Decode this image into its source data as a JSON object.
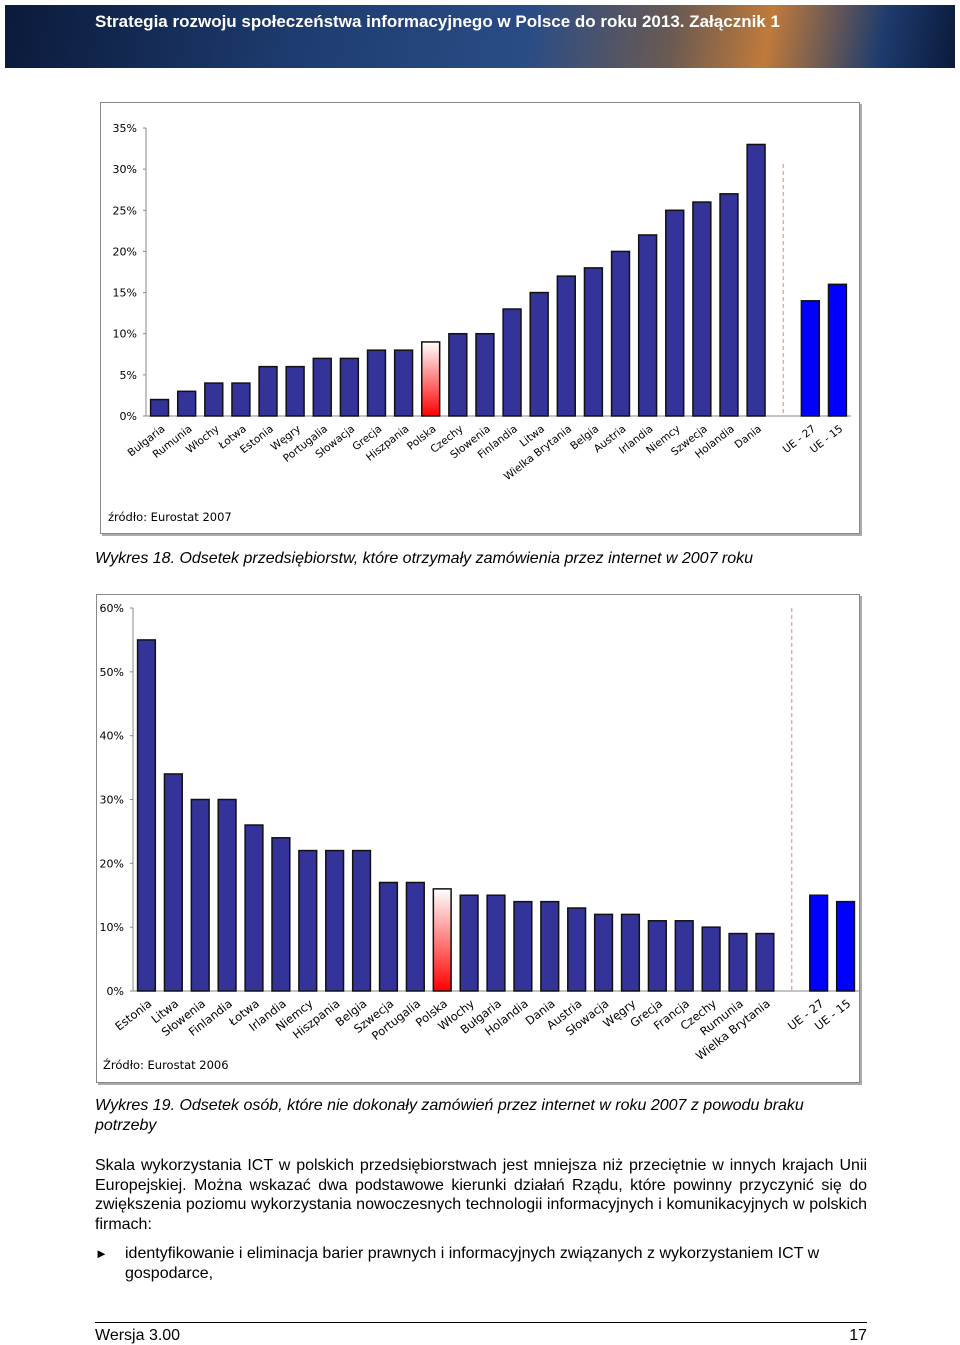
{
  "header": {
    "title": "Strategia rozwoju społeczeństwa informacyjnego w Polsce do roku 2013. Załącznik 1"
  },
  "chart_data": [
    {
      "type": "bar",
      "categories": [
        "Bułgaria",
        "Rumunia",
        "Włochy",
        "Łotwa",
        "Estonia",
        "Węgry",
        "Portugalia",
        "Słowacja",
        "Grecja",
        "Hiszpania",
        "Polska",
        "Czechy",
        "Słowenia",
        "Finlandia",
        "Litwa",
        "Wielka Brytania",
        "Belgia",
        "Austria",
        "Irlandia",
        "Niemcy",
        "Szwecja",
        "Holandia",
        "Dania",
        null,
        "UE - 27",
        "UE - 15"
      ],
      "values": [
        2,
        3,
        4,
        4,
        6,
        6,
        7,
        7,
        8,
        8,
        9,
        10,
        10,
        13,
        15,
        17,
        18,
        20,
        22,
        25,
        26,
        27,
        33,
        null,
        14,
        16
      ],
      "colors": [
        "#333399",
        "#333399",
        "#333399",
        "#333399",
        "#333399",
        "#333399",
        "#333399",
        "#333399",
        "#333399",
        "#333399",
        [
          "#ffffff",
          "#ff0000"
        ],
        "#333399",
        "#333399",
        "#333399",
        "#333399",
        "#333399",
        "#333399",
        "#333399",
        "#333399",
        "#333399",
        "#333399",
        "#333399",
        "#333399",
        null,
        "#0000ff",
        "#0000ff"
      ],
      "ylim": [
        0,
        35
      ],
      "yticks": [
        {
          "value": 0,
          "label": "0%"
        },
        {
          "value": 5,
          "label": "5%"
        },
        {
          "value": 10,
          "label": "10%"
        },
        {
          "value": 15,
          "label": "15%"
        },
        {
          "value": 20,
          "label": "20%"
        },
        {
          "value": 25,
          "label": "25%"
        },
        {
          "value": 30,
          "label": "30%"
        },
        {
          "value": 35,
          "label": "35%"
        }
      ],
      "source": "źródło: Eurostat 2007",
      "caption": "Wykres 18. Odsetek przedsiębiorstw, które otrzymały zamówienia przez internet w 2007 roku"
    },
    {
      "type": "bar",
      "categories": [
        "Estonia",
        "Litwa",
        "Słowenia",
        "Finlandia",
        "Łotwa",
        "Irlandia",
        "Niemcy",
        "Hiszpania",
        "Belgia",
        "Szwecja",
        "Portugalia",
        "Polska",
        "Włochy",
        "Bułgaria",
        "Holandia",
        "Dania",
        "Austria",
        "Słowacja",
        "Węgry",
        "Grecja",
        "Francja",
        "Czechy",
        "Rumunia",
        "Wielka Brytania",
        null,
        "UE - 27",
        "UE - 15"
      ],
      "values": [
        55,
        34,
        30,
        30,
        26,
        24,
        22,
        22,
        22,
        17,
        17,
        16,
        15,
        15,
        14,
        14,
        13,
        12,
        12,
        11,
        11,
        10,
        9,
        9,
        null,
        15,
        14
      ],
      "colors": [
        "#333399",
        "#333399",
        "#333399",
        "#333399",
        "#333399",
        "#333399",
        "#333399",
        "#333399",
        "#333399",
        "#333399",
        "#333399",
        [
          "#ffffff",
          "#ff0000"
        ],
        "#333399",
        "#333399",
        "#333399",
        "#333399",
        "#333399",
        "#333399",
        "#333399",
        "#333399",
        "#333399",
        "#333399",
        "#333399",
        "#333399",
        null,
        "#0000ff",
        "#0000ff"
      ],
      "ylim": [
        0,
        60
      ],
      "yticks": [
        {
          "value": 0,
          "label": "0%"
        },
        {
          "value": 10,
          "label": "10%"
        },
        {
          "value": 20,
          "label": "20%"
        },
        {
          "value": 30,
          "label": "30%"
        },
        {
          "value": 40,
          "label": "40%"
        },
        {
          "value": 50,
          "label": "50%"
        },
        {
          "value": 60,
          "label": "60%"
        }
      ],
      "source": "Źródło: Eurostat 2006",
      "caption": "Wykres 19. Odsetek osób, które nie dokonały zamówień przez internet w roku 2007 z powodu braku potrzeby"
    }
  ],
  "text": {
    "paragraph": "Skala wykorzystania ICT w polskich przedsiębiorstwach jest mniejsza niż przeciętnie w innych krajach Unii Europejskiej. Można wskazać dwa podstawowe kierunki działań Rządu, które powinny przyczynić się do zwiększenia poziomu wykorzystania nowoczesnych technologii informacyjnych i komunikacyjnych w polskich firmach:",
    "bullets": [
      "identyfikowanie i eliminacja barier prawnych i informacyjnych związanych z wykorzystaniem ICT w gospodarce,"
    ]
  },
  "footer": {
    "version": "Wersja 3.00",
    "page": "17"
  }
}
